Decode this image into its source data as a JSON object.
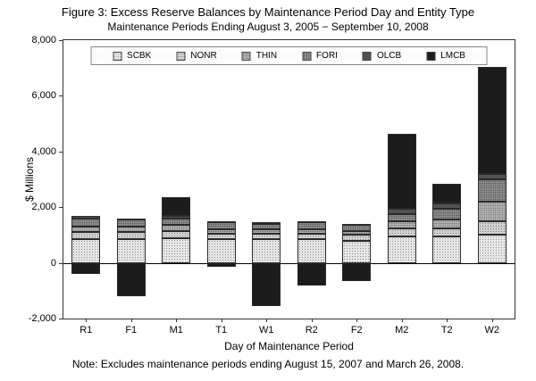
{
  "figure": {
    "title": "Figure 3: Excess Reserve Balances by Maintenance Period Day and Entity Type",
    "subtitle": "Maintenance Periods Ending August 3, 2005 − September 10, 2008",
    "note": "Note: Excludes maintenance periods ending August 15, 2007 and March 26, 2008.",
    "ylabel": "$ Millions",
    "xlabel": "Day of Maintenance Period"
  },
  "chart_data": {
    "type": "bar",
    "stacked": true,
    "grid": false,
    "legend_position": "top-inside",
    "categories": [
      "R1",
      "F1",
      "M1",
      "T1",
      "W1",
      "R2",
      "F2",
      "M2",
      "T2",
      "W2"
    ],
    "series": [
      {
        "name": "SCBK",
        "color": "#e6e6e6",
        "values": [
          850,
          850,
          900,
          850,
          850,
          850,
          800,
          950,
          950,
          1000
        ]
      },
      {
        "name": "NONR",
        "color": "#d0d0d0",
        "values": [
          250,
          250,
          250,
          200,
          200,
          200,
          200,
          300,
          300,
          500
        ]
      },
      {
        "name": "THIN",
        "color": "#b2b2b2",
        "values": [
          200,
          200,
          200,
          150,
          150,
          150,
          150,
          250,
          300,
          700
        ]
      },
      {
        "name": "FORI",
        "color": "#8c8c8c",
        "values": [
          300,
          250,
          250,
          250,
          200,
          250,
          200,
          250,
          400,
          800
        ]
      },
      {
        "name": "OLCB",
        "color": "#525252",
        "values": [
          100,
          50,
          100,
          50,
          50,
          50,
          50,
          200,
          200,
          200
        ]
      },
      {
        "name": "LMCB",
        "color": "#1c1c1c",
        "values": [
          -400,
          -1200,
          650,
          -150,
          -1550,
          -800,
          -650,
          2700,
          700,
          3850
        ]
      }
    ],
    "ylim": [
      -2000,
      8000
    ],
    "yticks": [
      -2000,
      0,
      2000,
      4000,
      6000,
      8000
    ]
  }
}
